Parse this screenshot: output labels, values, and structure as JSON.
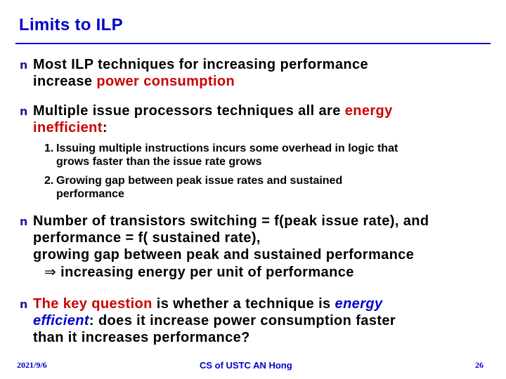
{
  "title": "Limits to ILP",
  "bullets": [
    {
      "mark": "n",
      "line1": "Most ILP techniques for increasing performance",
      "line2_plain": "increase ",
      "line2_red": "power consumption"
    },
    {
      "mark": "n",
      "line1_plain": "Multiple issue processors techniques all are ",
      "line1_red": "energy",
      "line2_red": "inefficient",
      "line2_tail": ":",
      "subitems": [
        {
          "num": "1.",
          "line1": "Issuing multiple instructions incurs some overhead in logic that",
          "line2": "grows faster than the issue rate grows"
        },
        {
          "num": "2.",
          "line1": "Growing gap between peak issue rates and sustained",
          "line2": "performance"
        }
      ]
    },
    {
      "mark": "n",
      "line1": "Number of transistors switching = f(peak issue rate), and",
      "line2": "performance = f( sustained rate),",
      "line3": "growing gap between peak and sustained performance",
      "arrow": "⇒",
      "line4": " increasing energy per unit of performance"
    },
    {
      "mark": "n",
      "line1_red": "The key question",
      "line1_plain": " is whether a technique is ",
      "line1_blue": "energy",
      "line2_blue": "efficient",
      "line2_plain": ": does it increase power consumption faster",
      "line3": "than it increases performance?"
    }
  ],
  "footer": {
    "date": "2021/9/6",
    "center": "CS of USTC AN Hong",
    "page": "26"
  },
  "colors": {
    "title": "#0000cc",
    "emphasis_red": "#cc0000",
    "emphasis_blue": "#0000cc"
  }
}
